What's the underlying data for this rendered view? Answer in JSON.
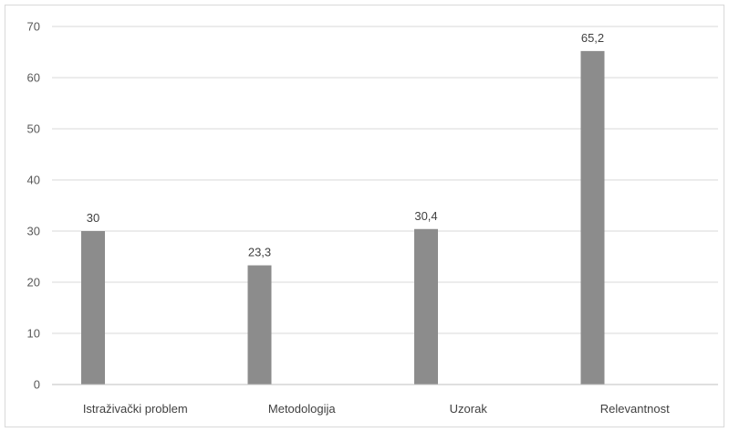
{
  "chart_data": {
    "type": "bar",
    "categories": [
      "Istraživački problem",
      "Metodologija",
      "Uzorak",
      "Relevantnost"
    ],
    "values": [
      30,
      23.3,
      30.4,
      65.2
    ],
    "data_labels": [
      "30",
      "23,3",
      "30,4",
      "65,2"
    ],
    "ylim": [
      0,
      70
    ],
    "yticks": [
      0,
      10,
      20,
      30,
      40,
      50,
      60,
      70
    ],
    "grid": true,
    "legend": "none",
    "title": "",
    "xlabel": "",
    "ylabel": "",
    "colors": {
      "bar": "#8c8c8c",
      "grid": "#d9d9d9",
      "axis": "#bfbfbf"
    }
  }
}
